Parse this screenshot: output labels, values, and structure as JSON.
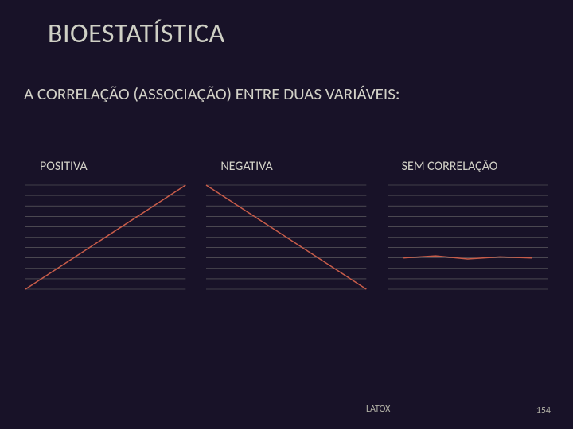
{
  "title": "BIOESTATÍSTICA",
  "subtitle": "A CORRELAÇÃO (ASSOCIAÇÃO) ENTRE DUAS VARIÁVEIS:",
  "footer": "LATOX",
  "page_number": "154",
  "background_color": "#181228",
  "text_color": "#cfd0c5",
  "charts": [
    {
      "label": "POSITIVA",
      "type": "line",
      "xlim": [
        0,
        10
      ],
      "ylim": [
        0,
        10
      ],
      "grid_y": [
        0,
        1,
        2,
        3,
        4,
        5,
        6,
        7,
        8,
        9,
        10
      ],
      "grid_color": "#6a6a6a",
      "line_color": "#c85d4a",
      "line_width": 1.5,
      "data": {
        "x": [
          0,
          10
        ],
        "y": [
          0,
          10
        ]
      }
    },
    {
      "label": "NEGATIVA",
      "type": "line",
      "xlim": [
        0,
        10
      ],
      "ylim": [
        0,
        10
      ],
      "grid_y": [
        0,
        1,
        2,
        3,
        4,
        5,
        6,
        7,
        8,
        9,
        10
      ],
      "grid_color": "#6a6a6a",
      "line_color": "#c85d4a",
      "line_width": 1.5,
      "data": {
        "x": [
          0,
          10
        ],
        "y": [
          10,
          0
        ]
      }
    },
    {
      "label": "SEM CORRELAÇÃO",
      "type": "line",
      "xlim": [
        0,
        10
      ],
      "ylim": [
        0,
        10
      ],
      "grid_y": [
        0,
        1,
        2,
        3,
        4,
        5,
        6,
        7,
        8,
        9,
        10
      ],
      "grid_color": "#6a6a6a",
      "line_color": "#c85d4a",
      "line_width": 1.5,
      "data": {
        "x": [
          1,
          3,
          5,
          7,
          9
        ],
        "y": [
          3.0,
          3.2,
          2.9,
          3.1,
          3.0
        ]
      }
    }
  ]
}
